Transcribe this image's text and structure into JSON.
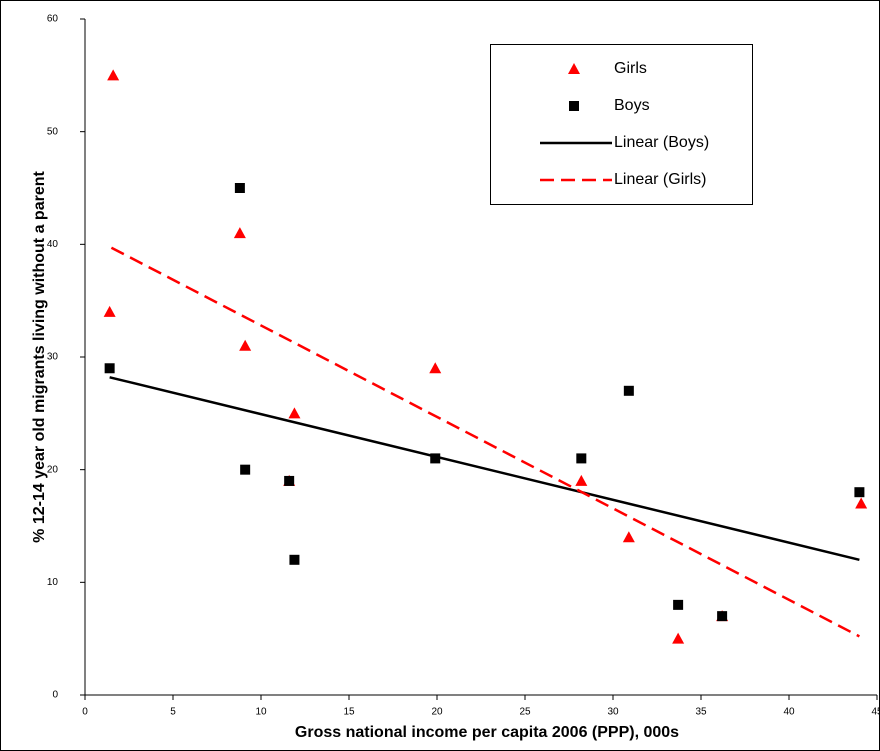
{
  "chart_data": {
    "type": "scatter",
    "x_label": "Gross national income per capita 2006 (PPP), 000s",
    "y_label": "% 12-14 year old migrants living without a parent",
    "xlim": [
      0,
      45
    ],
    "xticks": [
      0,
      5,
      10,
      15,
      20,
      25,
      30,
      35,
      40,
      45
    ],
    "ylim": [
      0,
      60
    ],
    "yticks": [
      0,
      10,
      20,
      30,
      40,
      50,
      60
    ],
    "series": [
      {
        "name": "Girls",
        "color": "#ff0000",
        "marker": "triangle",
        "x": [
          1.6,
          1.4,
          8.8,
          9.1,
          11.6,
          11.9,
          19.9,
          28.2,
          30.9,
          33.7,
          36.2,
          44.1
        ],
        "values": [
          55,
          34,
          41,
          31,
          19,
          25,
          29,
          19,
          14,
          5,
          7,
          17
        ]
      },
      {
        "name": "Boys",
        "color": "#000000",
        "marker": "square",
        "x": [
          1.4,
          8.8,
          9.1,
          11.6,
          11.9,
          19.9,
          28.2,
          30.9,
          33.7,
          36.2,
          44
        ],
        "values": [
          29,
          45,
          20,
          19,
          12,
          21,
          21,
          27,
          8,
          7,
          18
        ]
      },
      {
        "name": "Linear (Boys)",
        "color": "#000000",
        "line": "solid",
        "x": [
          1.4,
          44
        ],
        "values": [
          28.2,
          12
        ]
      },
      {
        "name": "Linear (Girls)",
        "color": "#ff0000",
        "line": "dashed",
        "x": [
          1.5,
          44
        ],
        "values": [
          39.7,
          5.2
        ]
      }
    ]
  }
}
